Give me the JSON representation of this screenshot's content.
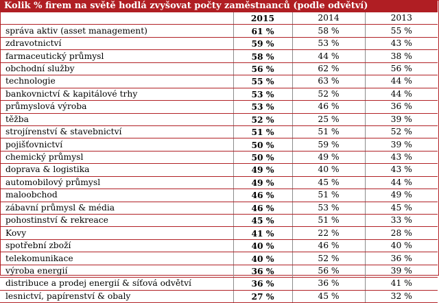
{
  "title": "Kolik % firem na světě hodlá zvyšovat počty zaměstnanců (podle odvětví)",
  "headers": [
    "2015",
    "2014",
    "2013"
  ],
  "rows": [
    {
      "sector": "správa aktiv (asset management)",
      "y2015": "61 %",
      "y2014": "58 %",
      "y2013": "55 %"
    },
    {
      "sector": "zdravotnictví",
      "y2015": "59 %",
      "y2014": "53 %",
      "y2013": "43 %"
    },
    {
      "sector": "farmaceutický průmysl",
      "y2015": "58 %",
      "y2014": "44 %",
      "y2013": "38 %"
    },
    {
      "sector": "obchodní služby",
      "y2015": "56 %",
      "y2014": "62 %",
      "y2013": "56 %"
    },
    {
      "sector": "technologie",
      "y2015": "55 %",
      "y2014": "63 %",
      "y2013": "44 %"
    },
    {
      "sector": "bankovnictví & kapitálové trhy",
      "y2015": "53 %",
      "y2014": "52 %",
      "y2013": "44 %"
    },
    {
      "sector": "průmyslová výroba",
      "y2015": "53 %",
      "y2014": "46 %",
      "y2013": "36 %"
    },
    {
      "sector": "těžba",
      "y2015": "52 %",
      "y2014": "25 %",
      "y2013": "39 %"
    },
    {
      "sector": "strojírenství & stavebnictví",
      "y2015": "51 %",
      "y2014": "51 %",
      "y2013": "52 %"
    },
    {
      "sector": "pojišťovnictví",
      "y2015": "50 %",
      "y2014": "59 %",
      "y2013": "39 %"
    },
    {
      "sector": "chemický průmysl",
      "y2015": "50 %",
      "y2014": "49 %",
      "y2013": "43 %"
    },
    {
      "sector": "doprava & logistika",
      "y2015": "49 %",
      "y2014": "40 %",
      "y2013": "43 %"
    },
    {
      "sector": "automobilový průmysl",
      "y2015": "49 %",
      "y2014": "45 %",
      "y2013": "44 %"
    },
    {
      "sector": "maloobchod",
      "y2015": "46 %",
      "y2014": "51 %",
      "y2013": "49 %"
    },
    {
      "sector": "zábavní průmysl & média",
      "y2015": "46 %",
      "y2014": "53 %",
      "y2013": "45 %"
    },
    {
      "sector": "pohostinství & rekreace",
      "y2015": "45 %",
      "y2014": "51 %",
      "y2013": "33 %"
    },
    {
      "sector": "Kovy",
      "y2015": "41 %",
      "y2014": "22 %",
      "y2013": "28 %"
    },
    {
      "sector": "spotřební zboží",
      "y2015": "40 %",
      "y2014": "46 %",
      "y2013": "40 %"
    },
    {
      "sector": "telekomunikace",
      "y2015": "40 %",
      "y2014": "52 %",
      "y2013": "36 %"
    },
    {
      "sector": "výroba energií",
      "y2015": "36 %",
      "y2014": "56 %",
      "y2013": "39 %"
    },
    {
      "sector": "distribuce a prodej energií & síťová odvětví",
      "y2015": "36 %",
      "y2014": "36 %",
      "y2013": "41 %"
    },
    {
      "sector": "lesnictví, papírenství & obaly",
      "y2015": "27 %",
      "y2014": "45 %",
      "y2013": "32 %"
    }
  ]
}
